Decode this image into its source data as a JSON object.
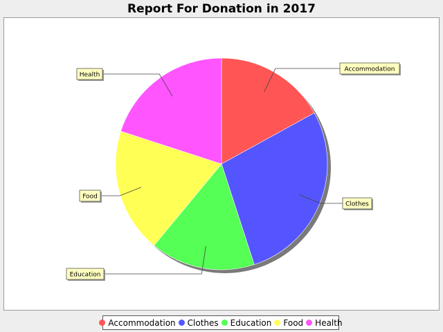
{
  "chart_data": {
    "type": "pie",
    "title": "Report For Donation in 2017",
    "categories": [
      "Accommodation",
      "Clothes",
      "Education",
      "Food",
      "Health"
    ],
    "values": [
      17,
      28,
      16,
      19,
      20
    ],
    "colors": [
      "#ff5555",
      "#5555ff",
      "#55ff55",
      "#ffff55",
      "#ff55ff"
    ],
    "legend_position": "bottom",
    "label_style": "callout"
  }
}
